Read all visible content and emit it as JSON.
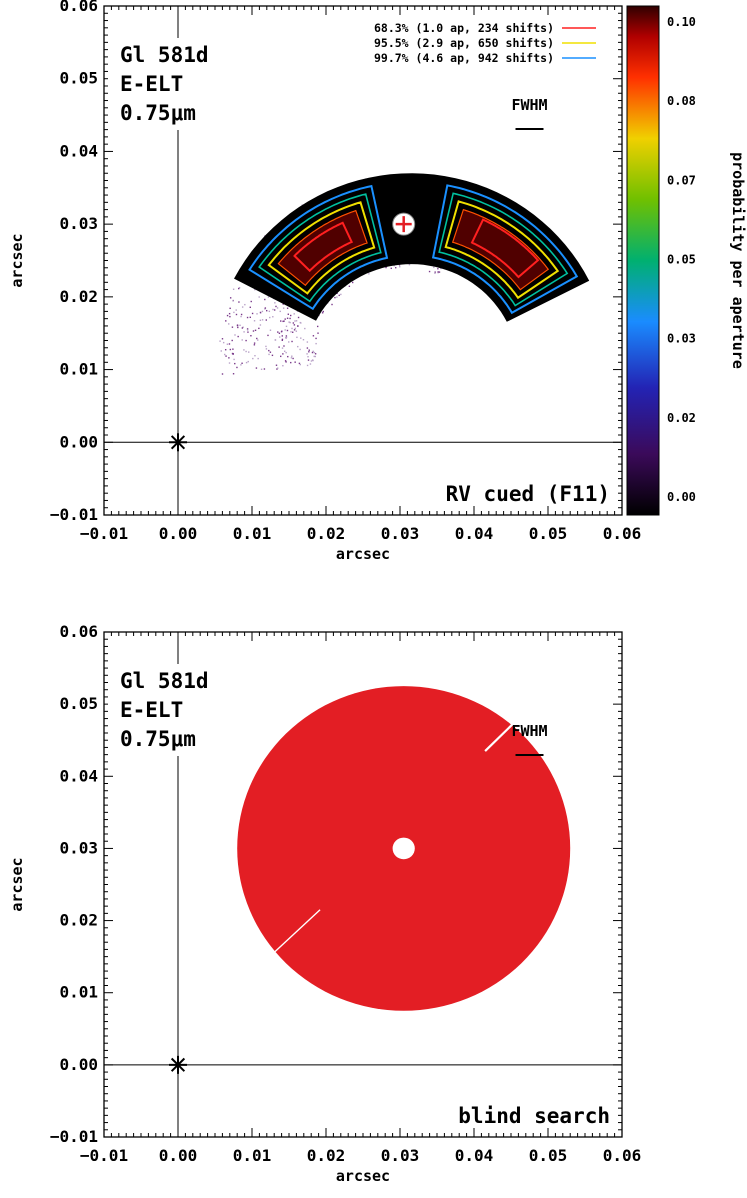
{
  "chart_data": [
    {
      "type": "heatmap",
      "panel": "top",
      "xlabel": "arcsec",
      "ylabel": "arcsec",
      "xlim": [
        -0.01,
        0.06
      ],
      "ylim": [
        -0.01,
        0.06
      ],
      "xticks": [
        "−0.01",
        "0.00",
        "0.01",
        "0.02",
        "0.03",
        "0.04",
        "0.05",
        "0.06"
      ],
      "yticks": [
        "−0.01",
        "0.00",
        "0.01",
        "0.02",
        "0.03",
        "0.04",
        "0.05",
        "0.06"
      ],
      "annotations": {
        "line1": "Gl 581d",
        "line2": "E-ELT",
        "line3": "0.75μm",
        "fwhm": "FWHM",
        "corner": "RV cued (F11)"
      },
      "star_position": [
        0.0,
        0.0
      ],
      "planet_position": [
        0.0305,
        0.03
      ],
      "legend": [
        {
          "label": "68.3% (1.0 ap, 234 shifts)",
          "color": "#ff2020"
        },
        {
          "label": "95.5% (2.9 ap, 650 shifts)",
          "color": "#f0e000"
        },
        {
          "label": "99.7% (4.6 ap, 942 shifts)",
          "color": "#1a90ff"
        }
      ],
      "legend_position": "top-right",
      "colorbar": {
        "label": "probability per aperture",
        "ticks": [
          "0.10",
          "0.08",
          "0.07",
          "0.05",
          "0.03",
          "0.02",
          "0.00"
        ],
        "range": [
          0.0,
          0.1
        ]
      }
    },
    {
      "type": "scatter",
      "panel": "bottom",
      "xlabel": "arcsec",
      "ylabel": "arcsec",
      "xlim": [
        -0.01,
        0.06
      ],
      "ylim": [
        -0.01,
        0.06
      ],
      "xticks": [
        "−0.01",
        "0.00",
        "0.01",
        "0.02",
        "0.03",
        "0.04",
        "0.05",
        "0.06"
      ],
      "yticks": [
        "−0.01",
        "0.00",
        "0.01",
        "0.02",
        "0.03",
        "0.04",
        "0.05",
        "0.06"
      ],
      "annotations": {
        "line1": "Gl 581d",
        "line2": "E-ELT",
        "line3": "0.75μm",
        "fwhm": "FWHM",
        "corner": "blind search"
      },
      "star_position": [
        0.0,
        0.0
      ],
      "region_center": [
        0.0305,
        0.03
      ],
      "region_outer_radius": 0.0225,
      "region_hole_radius": 0.0015,
      "fill_color": "#e31e24"
    }
  ]
}
